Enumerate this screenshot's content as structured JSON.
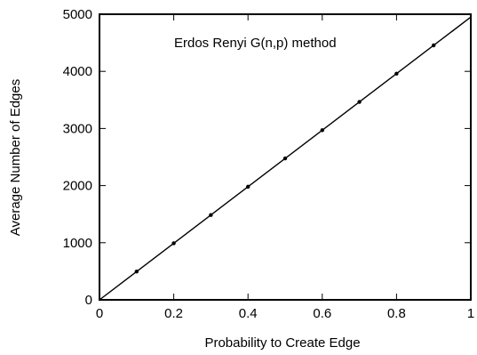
{
  "chart_data": {
    "type": "line",
    "title": "",
    "annotation": "Erdos Renyi G(n,p) method",
    "xlabel": "Probability to Create Edge",
    "ylabel": "Average Number of Edges",
    "xlim": [
      0,
      1
    ],
    "ylim": [
      0,
      5000
    ],
    "xticks": [
      0,
      0.2,
      0.4,
      0.6,
      0.8,
      1
    ],
    "xtick_labels": [
      "0",
      "0.2",
      "0.4",
      "0.6",
      "0.8",
      "1"
    ],
    "yticks": [
      0,
      1000,
      2000,
      3000,
      4000,
      5000
    ],
    "ytick_labels": [
      "0",
      "1000",
      "2000",
      "3000",
      "4000",
      "5000"
    ],
    "grid": false,
    "series": [
      {
        "type": "line",
        "x": [
          0,
          1
        ],
        "y": [
          0,
          4950
        ],
        "color": "#000000"
      },
      {
        "type": "scatter",
        "x": [
          0.1,
          0.2,
          0.3,
          0.4,
          0.5,
          0.6,
          0.7,
          0.8,
          0.9
        ],
        "y": [
          495,
          990,
          1485,
          1980,
          2475,
          2970,
          3465,
          3960,
          4455
        ],
        "color": "#000000"
      }
    ]
  }
}
